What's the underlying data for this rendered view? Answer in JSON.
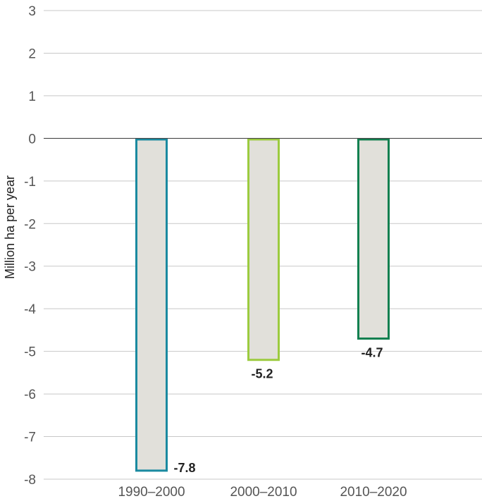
{
  "chart_data": {
    "type": "bar",
    "categories": [
      "1990–2000",
      "2000–2010",
      "2010–2020"
    ],
    "values": [
      -7.8,
      -5.2,
      -4.7
    ],
    "data_labels": [
      "-7.8",
      "-5.2",
      "-4.7"
    ],
    "bar_outline_colors": [
      "#1a8aa0",
      "#9ccb3f",
      "#128050"
    ],
    "bar_fill_color": "#e1e0da",
    "title": "",
    "xlabel": "",
    "ylabel": "Million ha per year",
    "ylim": [
      -8,
      3
    ],
    "yticks": [
      3,
      2,
      1,
      0,
      -1,
      -2,
      -3,
      -4,
      -5,
      -6,
      -7,
      -8
    ],
    "ytick_labels": [
      "3",
      "2",
      "1",
      "0",
      "-1",
      "-2",
      "-3",
      "-4",
      "-5",
      "-6",
      "-7",
      "-8"
    ],
    "grid": true,
    "legend": "none"
  }
}
